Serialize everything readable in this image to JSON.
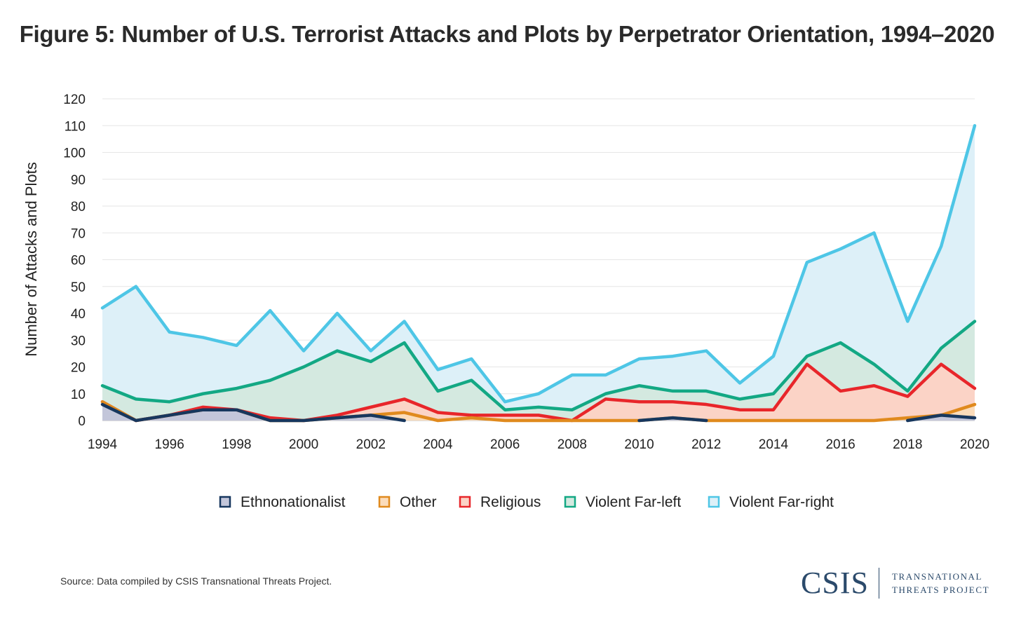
{
  "chart_data": {
    "type": "area",
    "stacked": true,
    "title": "Figure 5: Number of U.S. Terrorist Attacks and Plots by Perpetrator Orientation, 1994–2020",
    "xlabel": "",
    "ylabel": "Number of Attacks and Plots",
    "ylim": [
      0,
      120
    ],
    "yticks": [
      0,
      10,
      20,
      30,
      40,
      50,
      60,
      70,
      80,
      90,
      100,
      110,
      120
    ],
    "xticks": [
      1994,
      1996,
      1998,
      2000,
      2002,
      2004,
      2006,
      2008,
      2010,
      2012,
      2014,
      2016,
      2018,
      2020
    ],
    "grid": true,
    "legend_position": "bottom",
    "x": [
      1994,
      1995,
      1996,
      1997,
      1998,
      1999,
      2000,
      2001,
      2002,
      2003,
      2004,
      2005,
      2006,
      2007,
      2008,
      2009,
      2010,
      2011,
      2012,
      2013,
      2014,
      2015,
      2016,
      2017,
      2018,
      2019,
      2020
    ],
    "series": [
      {
        "name": "Ethnonationalist",
        "line": "#17375e",
        "fill": "#c3c6da",
        "values": [
          6,
          0,
          2,
          4,
          4,
          0,
          0,
          1,
          2,
          0,
          null,
          null,
          null,
          null,
          null,
          null,
          0,
          1,
          0,
          null,
          null,
          null,
          null,
          null,
          0,
          2,
          1
        ]
      },
      {
        "name": "Other",
        "line": "#e08a1e",
        "fill": "#fbdcbb",
        "values": [
          1,
          0,
          0,
          0,
          0,
          0,
          0,
          0,
          0,
          3,
          0,
          1,
          0,
          0,
          0,
          0,
          0,
          0,
          0,
          0,
          0,
          0,
          0,
          0,
          1,
          0,
          5
        ]
      },
      {
        "name": "Religious",
        "line": "#e8262a",
        "fill": "#fbd3c6",
        "values": [
          0,
          0,
          0,
          1,
          0,
          1,
          0,
          1,
          3,
          5,
          3,
          1,
          2,
          2,
          0,
          8,
          7,
          6,
          6,
          4,
          4,
          21,
          11,
          13,
          8,
          19,
          6
        ]
      },
      {
        "name": "Violent Far-left",
        "line": "#13a884",
        "fill": "#d4e9e0",
        "values": [
          6,
          8,
          5,
          5,
          8,
          14,
          20,
          24,
          17,
          21,
          8,
          13,
          2,
          3,
          4,
          2,
          6,
          4,
          5,
          4,
          6,
          3,
          18,
          8,
          2,
          6,
          25
        ]
      },
      {
        "name": "Violent Far-right",
        "line": "#4ec6e6",
        "fill": "#ddf0f8",
        "values": [
          29,
          42,
          26,
          21,
          16,
          26,
          6,
          14,
          4,
          8,
          8,
          8,
          3,
          5,
          13,
          7,
          10,
          13,
          15,
          6,
          14,
          35,
          35,
          49,
          26,
          38,
          73
        ]
      }
    ]
  },
  "source": "Source: Data compiled by CSIS Transnational Threats Project.",
  "logo": {
    "main": "CSIS",
    "sub_line1": "TRANSNATIONAL",
    "sub_line2": "THREATS PROJECT"
  }
}
